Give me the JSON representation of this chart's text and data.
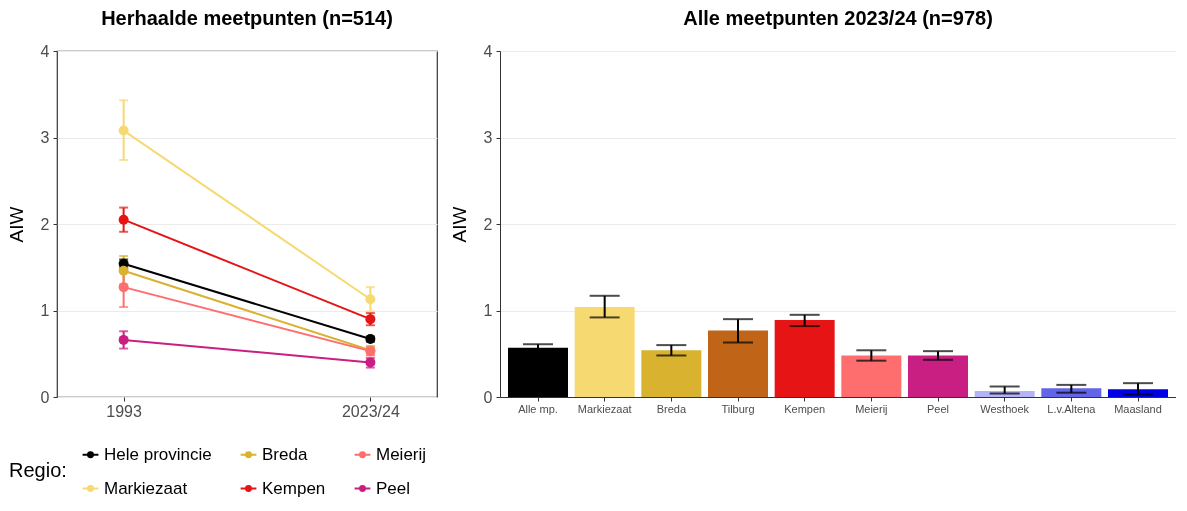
{
  "chart_data": [
    {
      "type": "line",
      "title": "Herhaalde meetpunten (n=514)",
      "ylabel": "AIW",
      "categories": [
        "1993",
        "2023/24"
      ],
      "ylim": [
        0,
        4
      ],
      "yticks": [
        0,
        1,
        2,
        3,
        4
      ],
      "grid": "y",
      "marker": "circle",
      "legend": "bottom",
      "legend_title": "Regio:",
      "series": [
        {
          "name": "Hele provincie",
          "color": "#000000",
          "values": [
            1.54,
            0.67
          ],
          "errors": [
            [
              1.49,
              1.59
            ],
            [
              0.64,
              0.7
            ]
          ]
        },
        {
          "name": "Markiezaat",
          "color": "#f7d972",
          "values": [
            3.08,
            1.13
          ],
          "errors": [
            [
              2.74,
              3.43
            ],
            [
              0.99,
              1.27
            ]
          ]
        },
        {
          "name": "Breda",
          "color": "#d9b230",
          "values": [
            1.46,
            0.54
          ],
          "errors": [
            [
              1.3,
              1.63
            ],
            [
              0.49,
              0.59
            ]
          ]
        },
        {
          "name": "Kempen",
          "color": "#e61414",
          "values": [
            2.05,
            0.9
          ],
          "errors": [
            [
              1.91,
              2.19
            ],
            [
              0.83,
              0.97
            ]
          ]
        },
        {
          "name": "Meierij",
          "color": "#ff6e6e",
          "values": [
            1.27,
            0.53
          ],
          "errors": [
            [
              1.04,
              1.51
            ],
            [
              0.48,
              0.58
            ]
          ]
        },
        {
          "name": "Peel",
          "color": "#c91f83",
          "values": [
            0.66,
            0.4
          ],
          "errors": [
            [
              0.56,
              0.76
            ],
            [
              0.34,
              0.45
            ]
          ]
        }
      ]
    },
    {
      "type": "bar",
      "title": "Alle meetpunten 2023/24 (n=978)",
      "ylabel": "AIW",
      "categories": [
        "Alle mp.",
        "Markiezaat",
        "Breda",
        "Tilburg",
        "Kempen",
        "Meierij",
        "Peel",
        "Westhoek",
        "L.v.Altena",
        "Maasland"
      ],
      "ylim": [
        0,
        4
      ],
      "yticks": [
        0,
        1,
        2,
        3,
        4
      ],
      "grid": "y",
      "values": [
        0.57,
        1.04,
        0.54,
        0.77,
        0.89,
        0.48,
        0.48,
        0.07,
        0.1,
        0.09
      ],
      "colors": [
        "#000000",
        "#f7d972",
        "#d9b230",
        "#c06418",
        "#e61414",
        "#ff6e6e",
        "#c91f83",
        "#b3b3f5",
        "#6464e8",
        "#0000e6"
      ],
      "errors": [
        [
          0.54,
          0.61
        ],
        [
          0.92,
          1.17
        ],
        [
          0.48,
          0.6
        ],
        [
          0.63,
          0.9
        ],
        [
          0.82,
          0.95
        ],
        [
          0.42,
          0.54
        ],
        [
          0.43,
          0.53
        ],
        [
          0.04,
          0.12
        ],
        [
          0.05,
          0.14
        ],
        [
          0.03,
          0.16
        ]
      ]
    }
  ]
}
